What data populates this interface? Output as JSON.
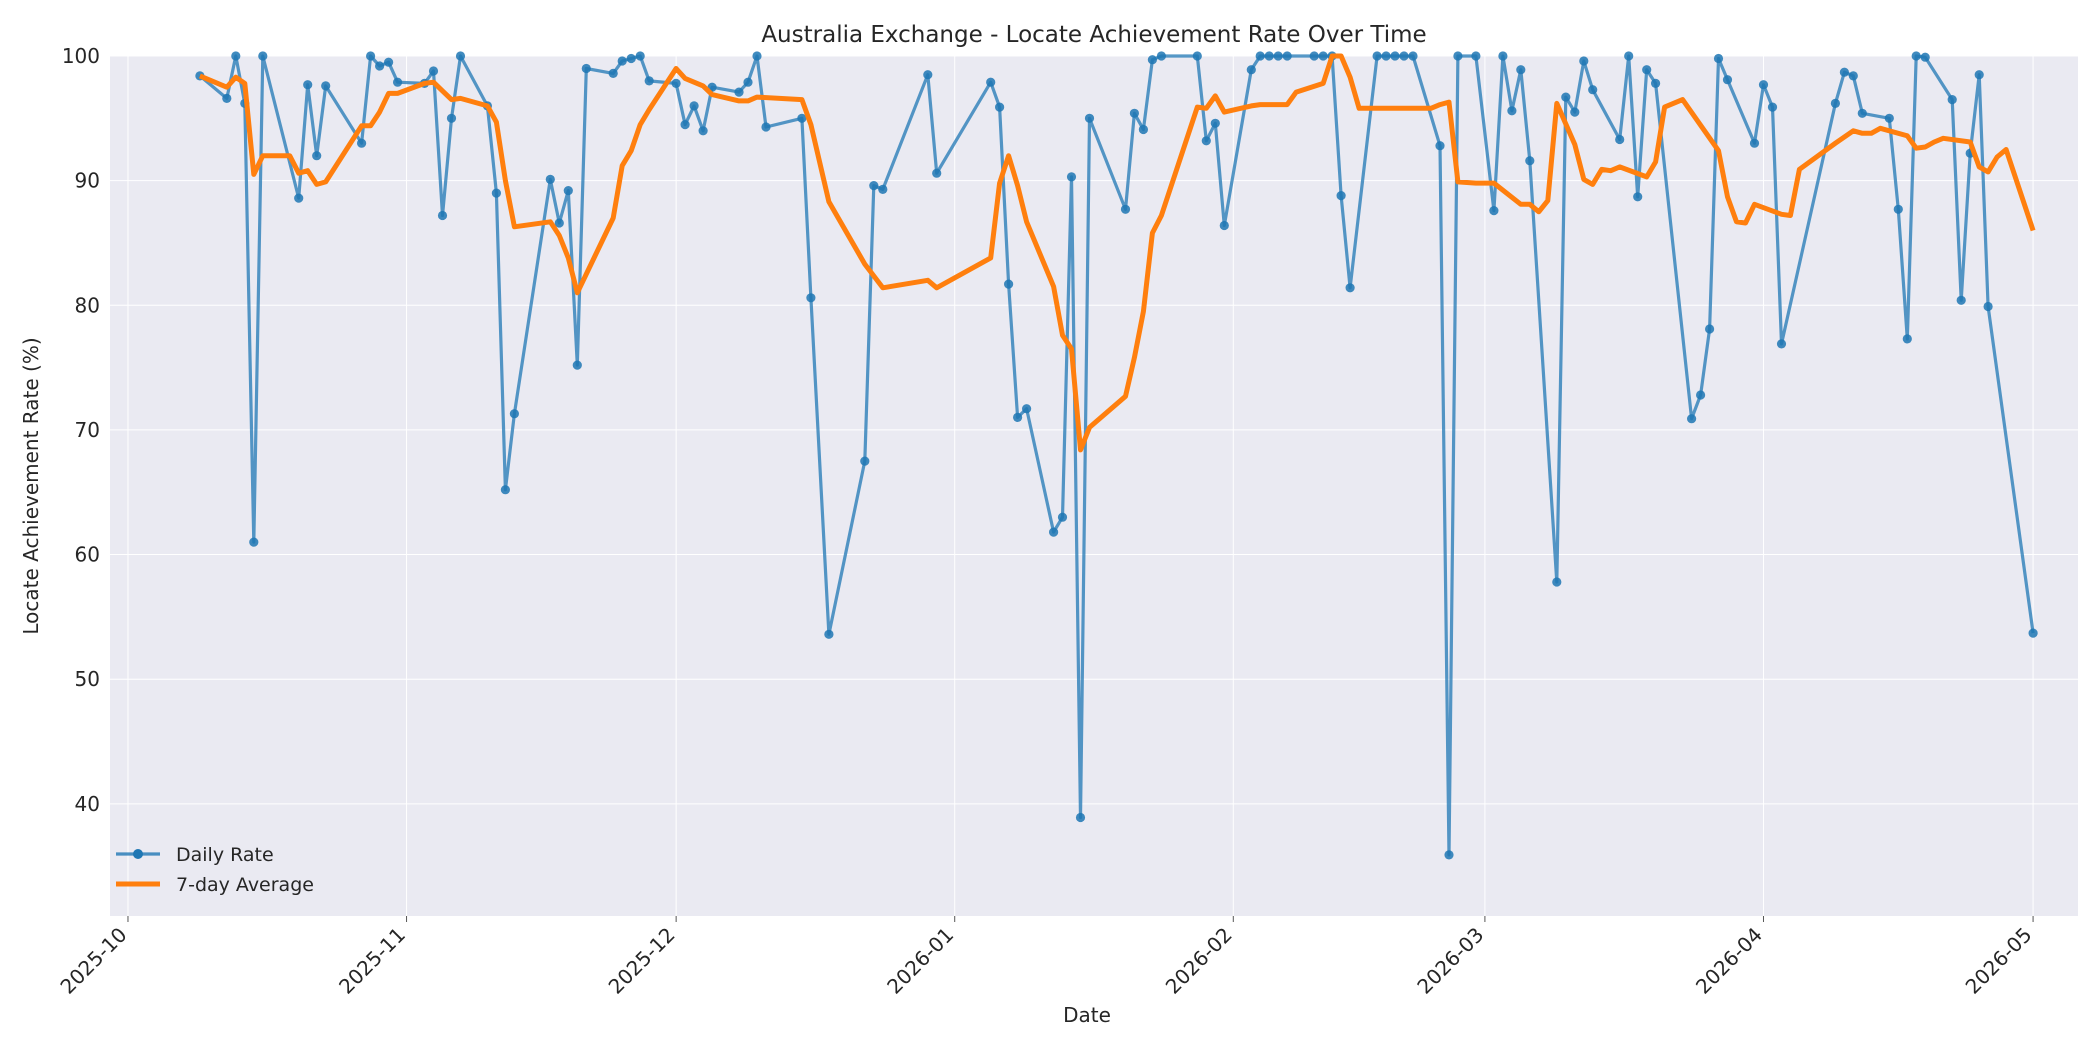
{
  "chart_data": {
    "type": "line",
    "title": "Australia Exchange - Locate Achievement Rate Over Time",
    "xlabel": "Date",
    "ylabel": "Locate Achievement Rate (%)",
    "xlim": [
      "2025-09-29",
      "2026-05-06"
    ],
    "ylim": [
      31,
      100
    ],
    "x_ticks": [
      "2025-10",
      "2025-11",
      "2025-12",
      "2026-01",
      "2026-02",
      "2026-03",
      "2026-04",
      "2026-05"
    ],
    "y_ticks": [
      40,
      50,
      60,
      70,
      80,
      90,
      100
    ],
    "grid": true,
    "legend_position": "lower-left",
    "colors": {
      "daily": "#1f77b4",
      "average": "#ff7f0e",
      "background": "#eaeaf2"
    },
    "series": [
      {
        "name": "Daily Rate",
        "style": "line-markers",
        "points": [
          [
            "2025-10-09",
            98.4
          ],
          [
            "2025-10-12",
            96.6
          ],
          [
            "2025-10-13",
            100
          ],
          [
            "2025-10-14",
            96.2
          ],
          [
            "2025-10-15",
            61
          ],
          [
            "2025-10-16",
            100
          ],
          [
            "2025-10-20",
            88.6
          ],
          [
            "2025-10-21",
            97.7
          ],
          [
            "2025-10-22",
            92
          ],
          [
            "2025-10-23",
            97.6
          ],
          [
            "2025-10-27",
            93
          ],
          [
            "2025-10-28",
            100
          ],
          [
            "2025-10-29",
            99.2
          ],
          [
            "2025-10-30",
            99.5
          ],
          [
            "2025-10-31",
            97.9
          ],
          [
            "2025-11-03",
            97.8
          ],
          [
            "2025-11-04",
            98.8
          ],
          [
            "2025-11-05",
            87.2
          ],
          [
            "2025-11-06",
            95
          ],
          [
            "2025-11-07",
            100
          ],
          [
            "2025-11-10",
            96
          ],
          [
            "2025-11-11",
            89
          ],
          [
            "2025-11-12",
            65.2
          ],
          [
            "2025-11-13",
            71.3
          ],
          [
            "2025-11-17",
            90.1
          ],
          [
            "2025-11-18",
            86.6
          ],
          [
            "2025-11-19",
            89.2
          ],
          [
            "2025-11-20",
            75.2
          ],
          [
            "2025-11-21",
            99
          ],
          [
            "2025-11-24",
            98.6
          ],
          [
            "2025-11-25",
            99.6
          ],
          [
            "2025-11-26",
            99.8
          ],
          [
            "2025-11-27",
            100
          ],
          [
            "2025-11-28",
            98
          ],
          [
            "2025-12-01",
            97.8
          ],
          [
            "2025-12-02",
            94.5
          ],
          [
            "2025-12-03",
            96
          ],
          [
            "2025-12-04",
            94
          ],
          [
            "2025-12-05",
            97.5
          ],
          [
            "2025-12-08",
            97.1
          ],
          [
            "2025-12-09",
            97.9
          ],
          [
            "2025-12-10",
            100
          ],
          [
            "2025-12-11",
            94.3
          ],
          [
            "2025-12-15",
            95
          ],
          [
            "2025-12-16",
            80.6
          ],
          [
            "2025-12-18",
            53.6
          ],
          [
            "2025-12-22",
            67.5
          ],
          [
            "2025-12-23",
            89.6
          ],
          [
            "2025-12-24",
            89.3
          ],
          [
            "2025-12-29",
            98.5
          ],
          [
            "2025-12-30",
            90.6
          ],
          [
            "2026-01-05",
            97.9
          ],
          [
            "2026-01-06",
            95.9
          ],
          [
            "2026-01-07",
            81.7
          ],
          [
            "2026-01-08",
            71
          ],
          [
            "2026-01-09",
            71.7
          ],
          [
            "2026-01-12",
            61.8
          ],
          [
            "2026-01-13",
            63
          ],
          [
            "2026-01-14",
            90.3
          ],
          [
            "2026-01-15",
            38.9
          ],
          [
            "2026-01-16",
            95
          ],
          [
            "2026-01-20",
            87.7
          ],
          [
            "2026-01-21",
            95.4
          ],
          [
            "2026-01-22",
            94.1
          ],
          [
            "2026-01-23",
            99.7
          ],
          [
            "2026-01-24",
            100
          ],
          [
            "2026-01-28",
            100
          ],
          [
            "2026-01-29",
            93.2
          ],
          [
            "2026-01-30",
            94.6
          ],
          [
            "2026-01-31",
            86.4
          ],
          [
            "2026-02-03",
            98.9
          ],
          [
            "2026-02-04",
            100
          ],
          [
            "2026-02-05",
            100
          ],
          [
            "2026-02-06",
            100
          ],
          [
            "2026-02-07",
            100
          ],
          [
            "2026-02-10",
            100
          ],
          [
            "2026-02-11",
            100
          ],
          [
            "2026-02-12",
            100
          ],
          [
            "2026-02-13",
            88.8
          ],
          [
            "2026-02-14",
            81.4
          ],
          [
            "2026-02-17",
            100
          ],
          [
            "2026-02-18",
            100
          ],
          [
            "2026-02-19",
            100
          ],
          [
            "2026-02-20",
            100
          ],
          [
            "2026-02-21",
            100
          ],
          [
            "2026-02-24",
            92.8
          ],
          [
            "2026-02-25",
            35.9
          ],
          [
            "2026-02-26",
            100
          ],
          [
            "2026-02-28",
            100
          ],
          [
            "2026-03-02",
            87.6
          ],
          [
            "2026-03-03",
            100
          ],
          [
            "2026-03-04",
            95.6
          ],
          [
            "2026-03-05",
            98.9
          ],
          [
            "2026-03-06",
            91.6
          ],
          [
            "2026-03-09",
            57.8
          ],
          [
            "2026-03-10",
            96.7
          ],
          [
            "2026-03-11",
            95.5
          ],
          [
            "2026-03-12",
            99.6
          ],
          [
            "2026-03-13",
            97.3
          ],
          [
            "2026-03-16",
            93.3
          ],
          [
            "2026-03-17",
            100
          ],
          [
            "2026-03-18",
            88.7
          ],
          [
            "2026-03-19",
            98.9
          ],
          [
            "2026-03-20",
            97.8
          ],
          [
            "2026-03-24",
            70.9
          ],
          [
            "2026-03-25",
            72.8
          ],
          [
            "2026-03-26",
            78.1
          ],
          [
            "2026-03-27",
            99.8
          ],
          [
            "2026-03-28",
            98.1
          ],
          [
            "2026-03-31",
            93
          ],
          [
            "2026-04-01",
            97.7
          ],
          [
            "2026-04-02",
            95.9
          ],
          [
            "2026-04-03",
            76.9
          ],
          [
            "2026-04-09",
            96.2
          ],
          [
            "2026-04-10",
            98.7
          ],
          [
            "2026-04-11",
            98.4
          ],
          [
            "2026-04-12",
            95.4
          ],
          [
            "2026-04-15",
            95
          ],
          [
            "2026-04-16",
            87.7
          ],
          [
            "2026-04-17",
            77.3
          ],
          [
            "2026-04-18",
            100
          ],
          [
            "2026-04-19",
            99.9
          ],
          [
            "2026-04-22",
            96.5
          ],
          [
            "2026-04-23",
            80.4
          ],
          [
            "2026-04-24",
            92.2
          ],
          [
            "2026-04-25",
            98.5
          ],
          [
            "2026-04-26",
            79.9
          ],
          [
            "2026-05-01",
            53.7
          ]
        ]
      },
      {
        "name": "7-day Average",
        "style": "line",
        "points": [
          [
            "2025-10-09",
            98.4
          ],
          [
            "2025-10-12",
            97.5
          ],
          [
            "2025-10-13",
            98.3
          ],
          [
            "2025-10-14",
            97.8
          ],
          [
            "2025-10-15",
            90.5
          ],
          [
            "2025-10-16",
            92
          ],
          [
            "2025-10-19",
            92
          ],
          [
            "2025-10-20",
            90.6
          ],
          [
            "2025-10-21",
            90.8
          ],
          [
            "2025-10-22",
            89.7
          ],
          [
            "2025-10-23",
            89.9
          ],
          [
            "2025-10-27",
            94.4
          ],
          [
            "2025-10-28",
            94.4
          ],
          [
            "2025-10-29",
            95.5
          ],
          [
            "2025-10-30",
            97
          ],
          [
            "2025-10-31",
            97
          ],
          [
            "2025-11-03",
            97.8
          ],
          [
            "2025-11-04",
            97.9
          ],
          [
            "2025-11-05",
            97.2
          ],
          [
            "2025-11-06",
            96.5
          ],
          [
            "2025-11-07",
            96.6
          ],
          [
            "2025-11-10",
            96
          ],
          [
            "2025-11-11",
            94.7
          ],
          [
            "2025-11-12",
            90
          ],
          [
            "2025-11-13",
            86.3
          ],
          [
            "2025-11-17",
            86.7
          ],
          [
            "2025-11-18",
            85.6
          ],
          [
            "2025-11-19",
            83.8
          ],
          [
            "2025-11-20",
            81
          ],
          [
            "2025-11-24",
            87
          ],
          [
            "2025-11-25",
            91.2
          ],
          [
            "2025-11-26",
            92.4
          ],
          [
            "2025-11-27",
            94.5
          ],
          [
            "2025-11-28",
            95.7
          ],
          [
            "2025-12-01",
            99
          ],
          [
            "2025-12-02",
            98.2
          ],
          [
            "2025-12-03",
            97.9
          ],
          [
            "2025-12-04",
            97.6
          ],
          [
            "2025-12-05",
            96.9
          ],
          [
            "2025-12-08",
            96.4
          ],
          [
            "2025-12-09",
            96.4
          ],
          [
            "2025-12-10",
            96.7
          ],
          [
            "2025-12-15",
            96.5
          ],
          [
            "2025-12-16",
            94.5
          ],
          [
            "2025-12-18",
            88.3
          ],
          [
            "2025-12-22",
            83.3
          ],
          [
            "2025-12-24",
            81.4
          ],
          [
            "2025-12-29",
            82
          ],
          [
            "2025-12-30",
            81.4
          ],
          [
            "2026-01-05",
            83.8
          ],
          [
            "2026-01-06",
            89.8
          ],
          [
            "2026-01-07",
            92
          ],
          [
            "2026-01-08",
            89.6
          ],
          [
            "2026-01-09",
            86.7
          ],
          [
            "2026-01-12",
            81.5
          ],
          [
            "2026-01-13",
            77.6
          ],
          [
            "2026-01-14",
            76.5
          ],
          [
            "2026-01-15",
            68.4
          ],
          [
            "2026-01-16",
            70.2
          ],
          [
            "2026-01-20",
            72.7
          ],
          [
            "2026-01-21",
            75.8
          ],
          [
            "2026-01-22",
            79.5
          ],
          [
            "2026-01-23",
            85.8
          ],
          [
            "2026-01-24",
            87.2
          ],
          [
            "2026-01-28",
            95.9
          ],
          [
            "2026-01-29",
            95.8
          ],
          [
            "2026-01-30",
            96.8
          ],
          [
            "2026-01-31",
            95.5
          ],
          [
            "2026-02-03",
            96
          ],
          [
            "2026-02-04",
            96.1
          ],
          [
            "2026-02-07",
            96.1
          ],
          [
            "2026-02-08",
            97.1
          ],
          [
            "2026-02-11",
            97.8
          ],
          [
            "2026-02-12",
            100
          ],
          [
            "2026-02-13",
            100
          ],
          [
            "2026-02-14",
            98.3
          ],
          [
            "2026-02-15",
            95.8
          ],
          [
            "2026-02-23",
            95.8
          ],
          [
            "2026-02-24",
            96.1
          ],
          [
            "2026-02-25",
            96.3
          ],
          [
            "2026-02-26",
            89.9
          ],
          [
            "2026-02-28",
            89.8
          ],
          [
            "2026-03-02",
            89.8
          ],
          [
            "2026-03-05",
            88.1
          ],
          [
            "2026-03-06",
            88.1
          ],
          [
            "2026-03-07",
            87.5
          ],
          [
            "2026-03-08",
            88.4
          ],
          [
            "2026-03-09",
            96.2
          ],
          [
            "2026-03-11",
            92.9
          ],
          [
            "2026-03-12",
            90.1
          ],
          [
            "2026-03-13",
            89.7
          ],
          [
            "2026-03-14",
            90.9
          ],
          [
            "2026-03-15",
            90.8
          ],
          [
            "2026-03-16",
            91.1
          ],
          [
            "2026-03-19",
            90.3
          ],
          [
            "2026-03-20",
            91.5
          ],
          [
            "2026-03-21",
            95.9
          ],
          [
            "2026-03-23",
            96.5
          ],
          [
            "2026-03-27",
            92.4
          ],
          [
            "2026-03-28",
            88.7
          ],
          [
            "2026-03-29",
            86.7
          ],
          [
            "2026-03-30",
            86.6
          ],
          [
            "2026-03-31",
            88.1
          ],
          [
            "2026-04-03",
            87.3
          ],
          [
            "2026-04-04",
            87.2
          ],
          [
            "2026-04-05",
            90.9
          ],
          [
            "2026-04-09",
            93
          ],
          [
            "2026-04-11",
            94
          ],
          [
            "2026-04-12",
            93.8
          ],
          [
            "2026-04-13",
            93.8
          ],
          [
            "2026-04-14",
            94.2
          ],
          [
            "2026-04-17",
            93.6
          ],
          [
            "2026-04-18",
            92.6
          ],
          [
            "2026-04-19",
            92.7
          ],
          [
            "2026-04-20",
            93.1
          ],
          [
            "2026-04-21",
            93.4
          ],
          [
            "2026-04-24",
            93.1
          ],
          [
            "2026-04-25",
            91.1
          ],
          [
            "2026-04-26",
            90.7
          ],
          [
            "2026-04-27",
            91.9
          ],
          [
            "2026-04-28",
            92.5
          ],
          [
            "2026-05-01",
            86
          ]
        ]
      }
    ]
  }
}
